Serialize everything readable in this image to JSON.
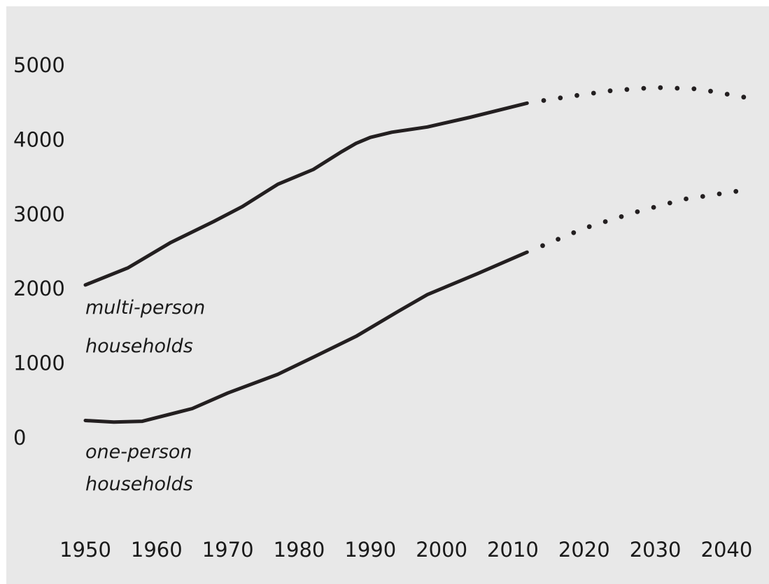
{
  "chart_data": {
    "type": "line",
    "title": "",
    "xlabel": "",
    "ylabel": "",
    "xlim": [
      1950,
      2043
    ],
    "ylim": [
      0,
      5000
    ],
    "grid": false,
    "legend": "none",
    "x_ticks": [
      1950,
      1960,
      1970,
      1980,
      1990,
      2000,
      2010,
      2020,
      2030,
      2040
    ],
    "y_ticks": [
      0,
      1000,
      2000,
      3000,
      4000,
      5000
    ],
    "series": [
      {
        "label_lines": [
          "multi-person",
          "households"
        ],
        "observed": [
          {
            "x": 1950,
            "y": 2050
          },
          {
            "x": 1956,
            "y": 2280
          },
          {
            "x": 1962,
            "y": 2620
          },
          {
            "x": 1968,
            "y": 2900
          },
          {
            "x": 1972,
            "y": 3100
          },
          {
            "x": 1977,
            "y": 3400
          },
          {
            "x": 1982,
            "y": 3600
          },
          {
            "x": 1986,
            "y": 3840
          },
          {
            "x": 1988,
            "y": 3950
          },
          {
            "x": 1990,
            "y": 4030
          },
          {
            "x": 1993,
            "y": 4100
          },
          {
            "x": 1998,
            "y": 4170
          },
          {
            "x": 2004,
            "y": 4300
          },
          {
            "x": 2012,
            "y": 4490
          }
        ],
        "projected": [
          {
            "x": 2012,
            "y": 4490
          },
          {
            "x": 2018,
            "y": 4580
          },
          {
            "x": 2024,
            "y": 4660
          },
          {
            "x": 2030,
            "y": 4700
          },
          {
            "x": 2036,
            "y": 4680
          },
          {
            "x": 2043,
            "y": 4560
          }
        ]
      },
      {
        "label_lines": [
          "one-person",
          "households"
        ],
        "observed": [
          {
            "x": 1950,
            "y": 230
          },
          {
            "x": 1954,
            "y": 210
          },
          {
            "x": 1958,
            "y": 220
          },
          {
            "x": 1965,
            "y": 390
          },
          {
            "x": 1970,
            "y": 600
          },
          {
            "x": 1977,
            "y": 850
          },
          {
            "x": 1982,
            "y": 1080
          },
          {
            "x": 1988,
            "y": 1360
          },
          {
            "x": 1994,
            "y": 1700
          },
          {
            "x": 1998,
            "y": 1920
          },
          {
            "x": 2005,
            "y": 2200
          },
          {
            "x": 2012,
            "y": 2490
          }
        ],
        "projected": [
          {
            "x": 2012,
            "y": 2490
          },
          {
            "x": 2020,
            "y": 2810
          },
          {
            "x": 2027,
            "y": 3020
          },
          {
            "x": 2034,
            "y": 3200
          },
          {
            "x": 2043,
            "y": 3330
          }
        ]
      }
    ]
  },
  "style": {
    "background": "#e8e8e8",
    "line_color": "#231f20",
    "text_color": "#1a1a1a"
  }
}
